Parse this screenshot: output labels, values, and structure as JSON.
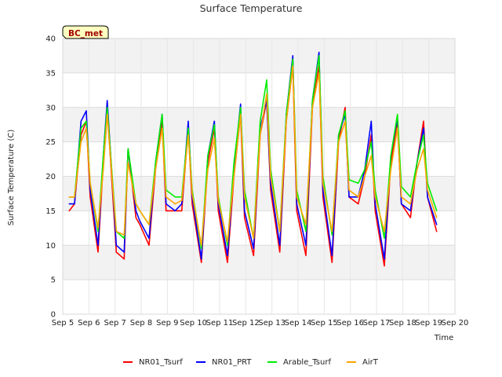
{
  "chart_data": {
    "type": "line",
    "title": "Surface Temperature",
    "xlabel": "Time",
    "ylabel": "Surface Temperature (C)",
    "badge": "BC_met",
    "ylim": [
      0,
      40
    ],
    "yticks": [
      0,
      5,
      10,
      15,
      20,
      25,
      30,
      35,
      40
    ],
    "xlim": [
      5,
      20
    ],
    "xticks": [
      5,
      6,
      7,
      8,
      9,
      10,
      11,
      12,
      13,
      14,
      15,
      16,
      17,
      18,
      19,
      20
    ],
    "xtick_labels": [
      "Sep 5",
      "Sep 6",
      "Sep 7",
      "Sep 8",
      "Sep 9",
      "Sep 10",
      "Sep 11",
      "Sep 12",
      "Sep 13",
      "Sep 14",
      "Sep 15",
      "Sep 16",
      "Sep 17",
      "Sep 18",
      "Sep 19",
      "Sep 20"
    ],
    "grid": true,
    "legend_position": "bottom",
    "series": [
      {
        "name": "NR01_Tsurf",
        "color": "#ff0000",
        "x": [
          5.25,
          5.45,
          5.7,
          5.9,
          6.05,
          6.35,
          6.55,
          6.7,
          6.95,
          7.05,
          7.35,
          7.5,
          7.8,
          7.95,
          8.3,
          8.55,
          8.8,
          8.95,
          9.3,
          9.55,
          9.8,
          9.95,
          10.3,
          10.55,
          10.8,
          10.95,
          11.3,
          11.55,
          11.8,
          11.95,
          12.3,
          12.55,
          12.8,
          12.95,
          13.3,
          13.55,
          13.8,
          13.95,
          14.3,
          14.55,
          14.8,
          14.95,
          15.3,
          15.55,
          15.8,
          15.95,
          16.3,
          16.55,
          16.8,
          16.95,
          17.3,
          17.55,
          17.8,
          17.95,
          18.3,
          18.55,
          18.8,
          18.95,
          19.3
        ],
        "y": [
          15,
          16,
          26,
          28,
          17,
          9,
          22,
          30,
          15,
          9,
          8,
          24,
          14,
          13,
          10,
          21,
          28,
          15,
          15,
          15,
          27,
          16,
          7.5,
          22,
          27,
          15,
          7.5,
          20,
          29,
          14,
          8.5,
          26,
          31,
          18,
          9,
          28,
          36,
          15,
          8.5,
          30,
          36,
          17,
          7.5,
          25,
          30,
          17,
          16,
          20,
          26,
          15,
          7,
          22,
          28,
          16,
          14,
          22,
          28,
          17,
          12
        ]
      },
      {
        "name": "NR01_PRT",
        "color": "#0000ff",
        "x": [
          5.25,
          5.45,
          5.7,
          5.9,
          6.05,
          6.35,
          6.55,
          6.7,
          6.95,
          7.05,
          7.35,
          7.5,
          7.8,
          7.95,
          8.3,
          8.55,
          8.8,
          8.95,
          9.3,
          9.55,
          9.8,
          9.95,
          10.3,
          10.55,
          10.8,
          10.95,
          11.3,
          11.55,
          11.8,
          11.95,
          12.3,
          12.55,
          12.8,
          12.95,
          13.3,
          13.55,
          13.8,
          13.95,
          14.3,
          14.55,
          14.8,
          14.95,
          15.3,
          15.55,
          15.8,
          15.95,
          16.3,
          16.55,
          16.8,
          16.95,
          17.3,
          17.55,
          17.8,
          17.95,
          18.3,
          18.55,
          18.8,
          18.95,
          19.3
        ],
        "y": [
          16,
          16,
          28,
          29.5,
          18,
          10,
          23,
          31,
          16,
          10,
          9,
          24,
          15,
          13.5,
          11,
          22,
          29,
          16,
          15,
          16,
          28,
          17,
          8,
          23,
          28,
          16,
          8.5,
          21,
          30.5,
          15,
          9.5,
          27,
          31,
          19,
          10,
          29,
          37.5,
          16,
          10,
          31,
          38,
          18,
          8.5,
          26,
          29,
          17,
          17,
          21,
          28,
          16,
          8,
          23,
          28.5,
          16,
          15,
          22,
          27,
          17,
          13
        ]
      },
      {
        "name": "Arable_Tsurf",
        "color": "#00ee00",
        "x": [
          5.25,
          5.45,
          5.7,
          5.9,
          6.05,
          6.35,
          6.55,
          6.7,
          6.95,
          7.05,
          7.35,
          7.5,
          7.8,
          7.95,
          8.3,
          8.55,
          8.8,
          8.95,
          9.3,
          9.55,
          9.8,
          9.95,
          10.3,
          10.55,
          10.8,
          10.95,
          11.3,
          11.55,
          11.8,
          11.95,
          12.3,
          12.55,
          12.8,
          12.95,
          13.3,
          13.55,
          13.8,
          13.95,
          14.3,
          14.55,
          14.8,
          14.95,
          15.3,
          15.55,
          15.8,
          15.95,
          16.3,
          16.55,
          16.8,
          16.95,
          17.3,
          17.55,
          17.8,
          17.95,
          18.3,
          18.55,
          18.8,
          18.95,
          19.3
        ],
        "y": [
          17,
          17,
          27,
          28,
          19,
          12,
          23,
          30,
          17,
          12,
          11,
          24,
          16,
          15,
          13,
          22,
          29,
          18,
          17,
          17,
          27,
          18,
          9.5,
          23,
          27.5,
          17,
          10,
          22,
          30,
          18,
          11,
          28,
          34,
          21,
          12,
          29,
          37,
          18,
          12,
          31,
          37.5,
          20,
          11.5,
          26,
          29.5,
          19.5,
          19,
          21,
          25,
          18,
          11,
          23,
          29,
          18.5,
          17,
          22,
          26,
          19,
          15
        ]
      },
      {
        "name": "AirT",
        "color": "#ffa500",
        "x": [
          5.25,
          5.45,
          5.7,
          5.9,
          6.05,
          6.35,
          6.55,
          6.7,
          6.95,
          7.05,
          7.35,
          7.5,
          7.8,
          7.95,
          8.3,
          8.55,
          8.8,
          8.95,
          9.3,
          9.55,
          9.8,
          9.95,
          10.3,
          10.55,
          10.8,
          10.95,
          11.3,
          11.55,
          11.8,
          11.95,
          12.3,
          12.55,
          12.8,
          12.95,
          13.3,
          13.55,
          13.8,
          13.95,
          14.3,
          14.55,
          14.8,
          14.95,
          15.3,
          15.55,
          15.8,
          15.95,
          16.3,
          16.55,
          16.8,
          16.95,
          17.3,
          17.55,
          17.8,
          17.95,
          18.3,
          18.55,
          18.8,
          18.95,
          19.3
        ],
        "y": [
          17,
          17,
          25,
          27,
          19,
          12.5,
          21,
          29,
          16.5,
          12,
          11.5,
          22,
          16,
          15,
          13,
          21,
          27,
          17,
          16,
          16.5,
          26,
          17.5,
          10,
          21,
          25.5,
          16.5,
          10.5,
          20,
          29,
          17,
          11,
          26,
          32,
          20,
          12,
          28,
          36,
          17,
          13,
          30,
          35,
          19,
          12,
          25,
          28,
          18,
          17,
          20,
          23,
          17,
          12,
          21,
          27,
          17,
          16,
          21,
          24,
          18,
          14
        ]
      }
    ]
  }
}
